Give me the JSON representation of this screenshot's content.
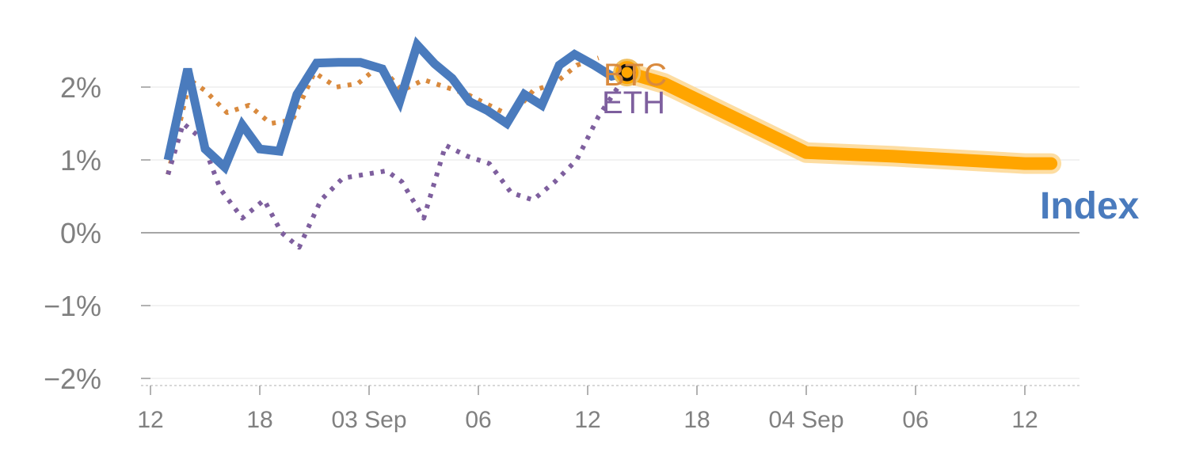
{
  "colors": {
    "index": "#4a7bbd",
    "btc": "#d98a3e",
    "eth": "#7e5f9e",
    "forecast": "#ffa500",
    "forecast_band": "#fdd792",
    "grid": "#e6e6e6",
    "zero": "#888888",
    "tick_text": "#808080"
  },
  "chart_data": {
    "type": "line",
    "ylim": [
      -2,
      2.5
    ],
    "xlim": [
      0,
      42
    ],
    "grid": true,
    "y_ticks": [
      {
        "value": 2,
        "label": "2%"
      },
      {
        "value": 1,
        "label": "1%"
      },
      {
        "value": 0,
        "label": "0%"
      },
      {
        "value": -1,
        "label": "−1%"
      },
      {
        "value": -2,
        "label": "−2%"
      }
    ],
    "x_ticks": [
      {
        "value": 0,
        "label": "12"
      },
      {
        "value": 5,
        "label": "18"
      },
      {
        "value": 10,
        "label": "03 Sep"
      },
      {
        "value": 15,
        "label": "06"
      },
      {
        "value": 20,
        "label": "12"
      },
      {
        "value": 25,
        "label": "18"
      },
      {
        "value": 30,
        "label": "04 Sep"
      },
      {
        "value": 35,
        "label": "06"
      },
      {
        "value": 40,
        "label": "12"
      }
    ],
    "series": [
      {
        "name": "BTC",
        "style": "dotted",
        "color_key": "btc",
        "x": [
          0.8,
          1.8,
          2.5,
          3.5,
          4.5,
          5.5,
          6.5,
          7.5,
          8.5,
          9.5,
          10.5,
          11.5,
          12.5,
          13.5,
          14.5,
          15.5,
          16.5,
          17.5,
          18.5,
          19.5,
          20.5
        ],
        "values": [
          0.8,
          2.1,
          1.95,
          1.65,
          1.75,
          1.5,
          1.55,
          2.2,
          2.0,
          2.05,
          2.3,
          1.95,
          2.1,
          2.0,
          1.9,
          1.75,
          1.6,
          1.95,
          2.05,
          2.3,
          2.4
        ]
      },
      {
        "name": "ETH",
        "style": "dotted",
        "color_key": "eth",
        "x": [
          0.8,
          1.5,
          2.3,
          3.2,
          4.2,
          5.2,
          6.0,
          6.8,
          7.8,
          8.8,
          9.8,
          10.8,
          11.5,
          12.5,
          13.5,
          14.5,
          15.5,
          16.5,
          17.5,
          18.5,
          19.5,
          20.5,
          21.5
        ],
        "values": [
          0.8,
          1.5,
          1.3,
          0.6,
          0.2,
          0.45,
          0.0,
          -0.2,
          0.45,
          0.75,
          0.8,
          0.85,
          0.7,
          0.2,
          1.2,
          1.05,
          0.95,
          0.55,
          0.45,
          0.7,
          1.0,
          1.6,
          2.05
        ]
      },
      {
        "name": "Index",
        "style": "solid",
        "color_key": "index",
        "x": [
          0.8,
          1.7,
          2.5,
          3.4,
          4.2,
          5.0,
          5.9,
          6.7,
          7.6,
          8.6,
          9.6,
          10.6,
          11.4,
          12.2,
          13.0,
          13.8,
          14.6,
          15.4,
          16.3,
          17.1,
          17.9,
          18.7,
          19.4,
          20.3,
          21.1,
          21.8
        ],
        "values": [
          1.0,
          2.25,
          1.15,
          0.9,
          1.48,
          1.15,
          1.12,
          1.9,
          2.33,
          2.34,
          2.34,
          2.25,
          1.8,
          2.58,
          2.32,
          2.12,
          1.8,
          1.68,
          1.5,
          1.9,
          1.75,
          2.3,
          2.45,
          2.3,
          2.15,
          2.2
        ]
      },
      {
        "name": "Index forecast",
        "style": "band",
        "color_key": "forecast",
        "x": [
          21.8,
          23.5,
          30.0,
          34.0,
          40.0,
          41.2
        ],
        "values": [
          2.2,
          2.05,
          1.1,
          1.05,
          0.95,
          0.95
        ]
      }
    ],
    "labels": [
      {
        "text": "BTC",
        "color_key": "btc"
      },
      {
        "text": "ETH",
        "color_key": "eth"
      },
      {
        "text": "Index",
        "color_key": "index"
      }
    ]
  }
}
